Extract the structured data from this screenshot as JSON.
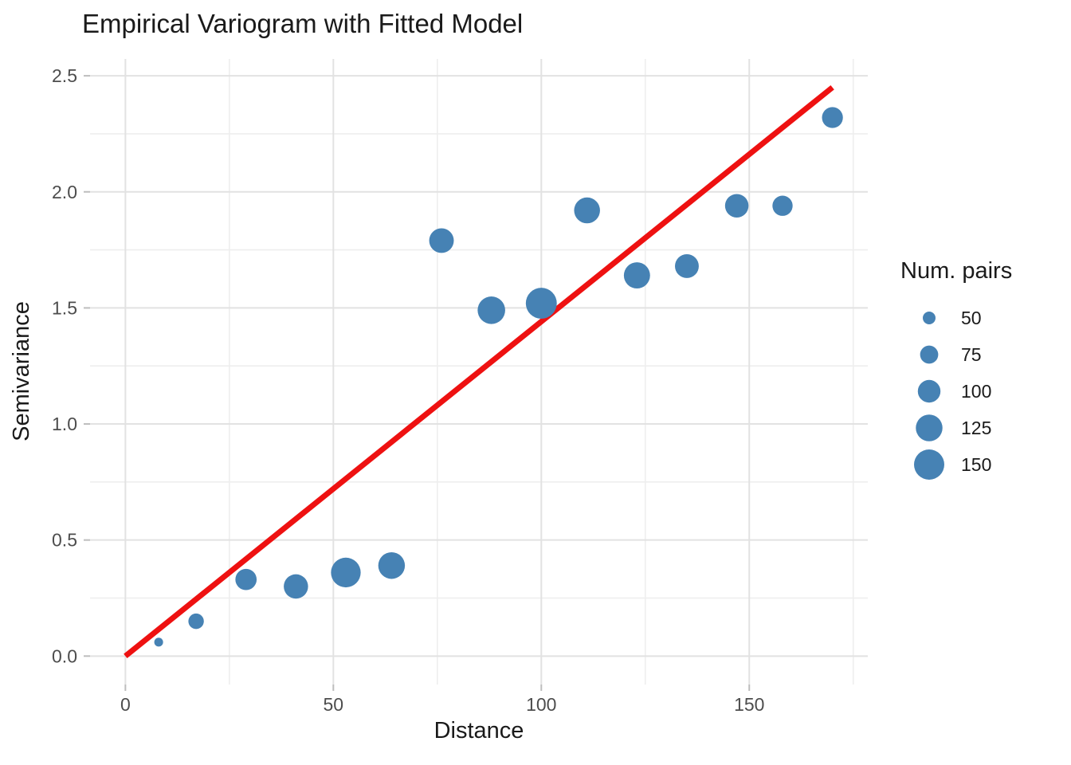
{
  "chart_data": {
    "type": "scatter",
    "title": "Empirical Variogram with Fitted Model",
    "xlabel": "Distance",
    "ylabel": "Semivariance",
    "grid": true,
    "xlim": [
      -8.5,
      178.5
    ],
    "ylim": [
      -0.1225,
      2.5725
    ],
    "x_ticks": [
      {
        "value": 0,
        "label": "0"
      },
      {
        "value": 50,
        "label": "50"
      },
      {
        "value": 100,
        "label": "100"
      },
      {
        "value": 150,
        "label": "150"
      }
    ],
    "y_ticks": [
      {
        "value": 0.0,
        "label": "0.0"
      },
      {
        "value": 0.5,
        "label": "0.5"
      },
      {
        "value": 1.0,
        "label": "1.0"
      },
      {
        "value": 1.5,
        "label": "1.5"
      },
      {
        "value": 2.0,
        "label": "2.0"
      },
      {
        "value": 2.5,
        "label": "2.5"
      }
    ],
    "x_minor": [
      25,
      75,
      125,
      175
    ],
    "y_minor": [
      0.25,
      0.75,
      1.25,
      1.75,
      2.25
    ],
    "points": [
      {
        "distance": 8,
        "semivariance": 0.06,
        "num_pairs": 35
      },
      {
        "distance": 17,
        "semivariance": 0.15,
        "num_pairs": 62
      },
      {
        "distance": 29,
        "semivariance": 0.33,
        "num_pairs": 92
      },
      {
        "distance": 41,
        "semivariance": 0.3,
        "num_pairs": 110
      },
      {
        "distance": 53,
        "semivariance": 0.36,
        "num_pairs": 146
      },
      {
        "distance": 64,
        "semivariance": 0.39,
        "num_pairs": 125
      },
      {
        "distance": 76,
        "semivariance": 1.79,
        "num_pairs": 112
      },
      {
        "distance": 88,
        "semivariance": 1.49,
        "num_pairs": 131
      },
      {
        "distance": 100,
        "semivariance": 1.52,
        "num_pairs": 155
      },
      {
        "distance": 111,
        "semivariance": 1.92,
        "num_pairs": 120
      },
      {
        "distance": 123,
        "semivariance": 1.64,
        "num_pairs": 122
      },
      {
        "distance": 135,
        "semivariance": 1.68,
        "num_pairs": 107
      },
      {
        "distance": 147,
        "semivariance": 1.94,
        "num_pairs": 105
      },
      {
        "distance": 158,
        "semivariance": 1.94,
        "num_pairs": 86
      },
      {
        "distance": 170,
        "semivariance": 2.32,
        "num_pairs": 90
      }
    ],
    "fitted_line": {
      "x0": 0,
      "y0": 0.0,
      "x1": 170,
      "y1": 2.45
    },
    "legend": {
      "title": "Num. pairs",
      "position": "right",
      "sizes": [
        {
          "label": "50",
          "value": 50
        },
        {
          "label": "75",
          "value": 75
        },
        {
          "label": "100",
          "value": 100
        },
        {
          "label": "125",
          "value": 125
        },
        {
          "label": "150",
          "value": 150
        }
      ]
    },
    "colors": {
      "point": "#4682B4",
      "line": "#EE1111",
      "grid_major": "#E2E2E2",
      "grid_minor": "#EEEEEE",
      "tick_mark": "#BDBDBD",
      "tick_label": "#4D4D4D",
      "text": "#1A1A1A",
      "background": "#FFFFFF"
    }
  }
}
